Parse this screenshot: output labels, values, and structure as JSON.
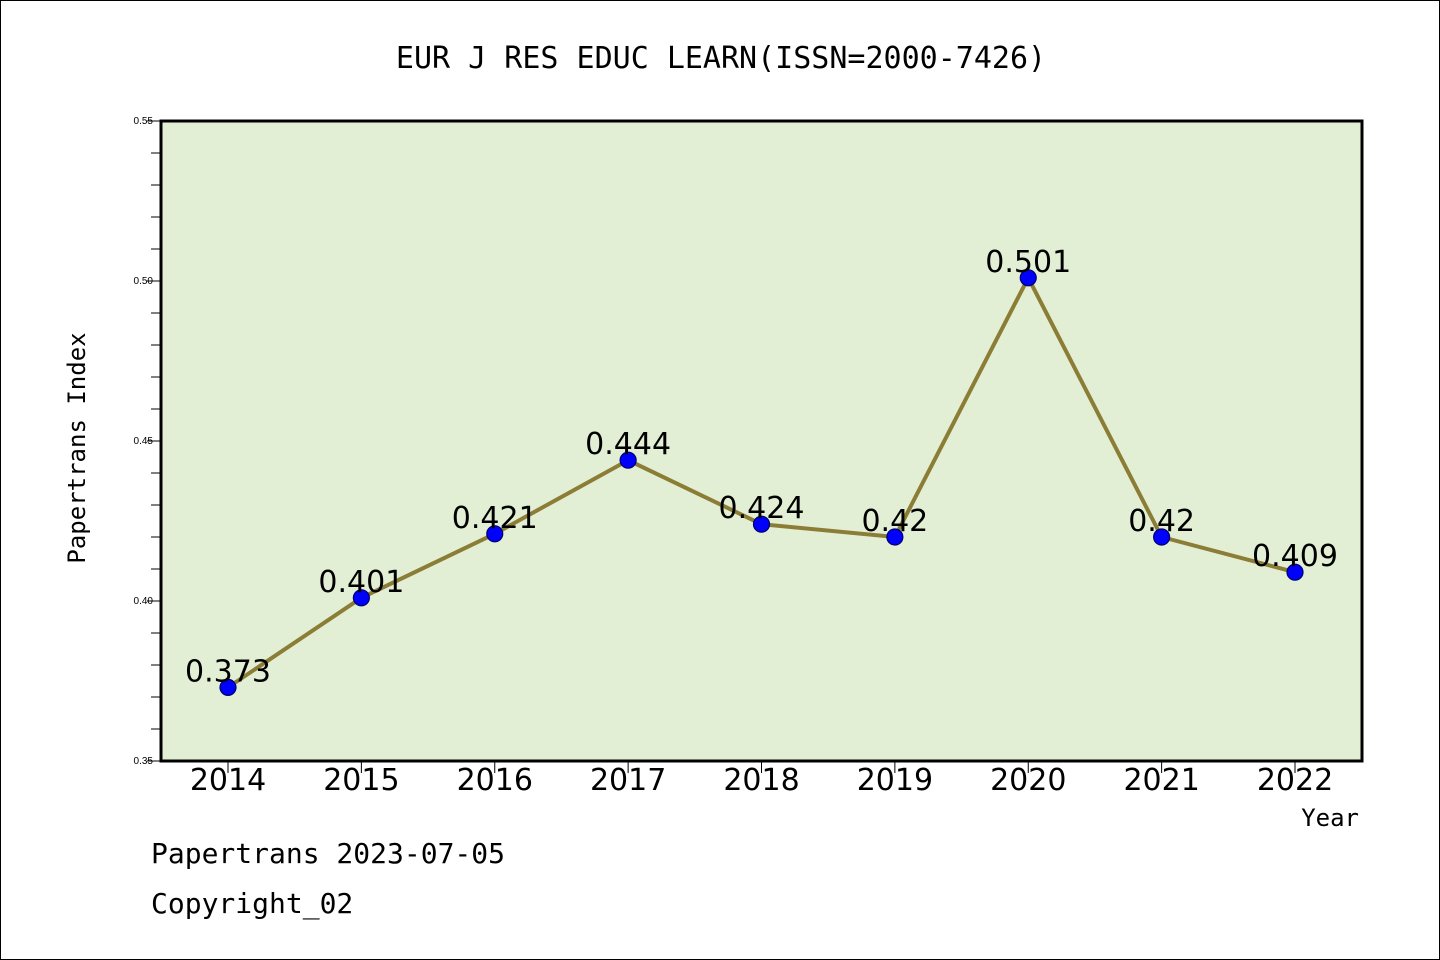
{
  "chart_data": {
    "type": "line",
    "title": "EUR J RES EDUC LEARN(ISSN=2000-7426)",
    "xlabel": "Year",
    "ylabel": "Papertrans Index",
    "categories": [
      "2014",
      "2015",
      "2016",
      "2017",
      "2018",
      "2019",
      "2020",
      "2021",
      "2022"
    ],
    "series": [
      {
        "values": [
          0.373,
          0.401,
          0.421,
          0.444,
          0.424,
          0.42,
          0.501,
          0.42,
          0.409
        ],
        "labels": [
          "0.373",
          "0.401",
          "0.421",
          "0.444",
          "0.424",
          "0.42",
          "0.501",
          "0.42",
          "0.409"
        ]
      }
    ],
    "ylim": [
      0.35,
      0.55
    ],
    "yticks": [
      "0.35",
      "0.40",
      "0.45",
      "0.50",
      "0.55"
    ],
    "grid": false,
    "colors": {
      "plot_background": "#e2efd5",
      "line": "#8b7d35",
      "marker": "#0000ff"
    }
  },
  "footer": {
    "source": "Papertrans 2023-07-05",
    "copyright": "Copyright_02"
  }
}
